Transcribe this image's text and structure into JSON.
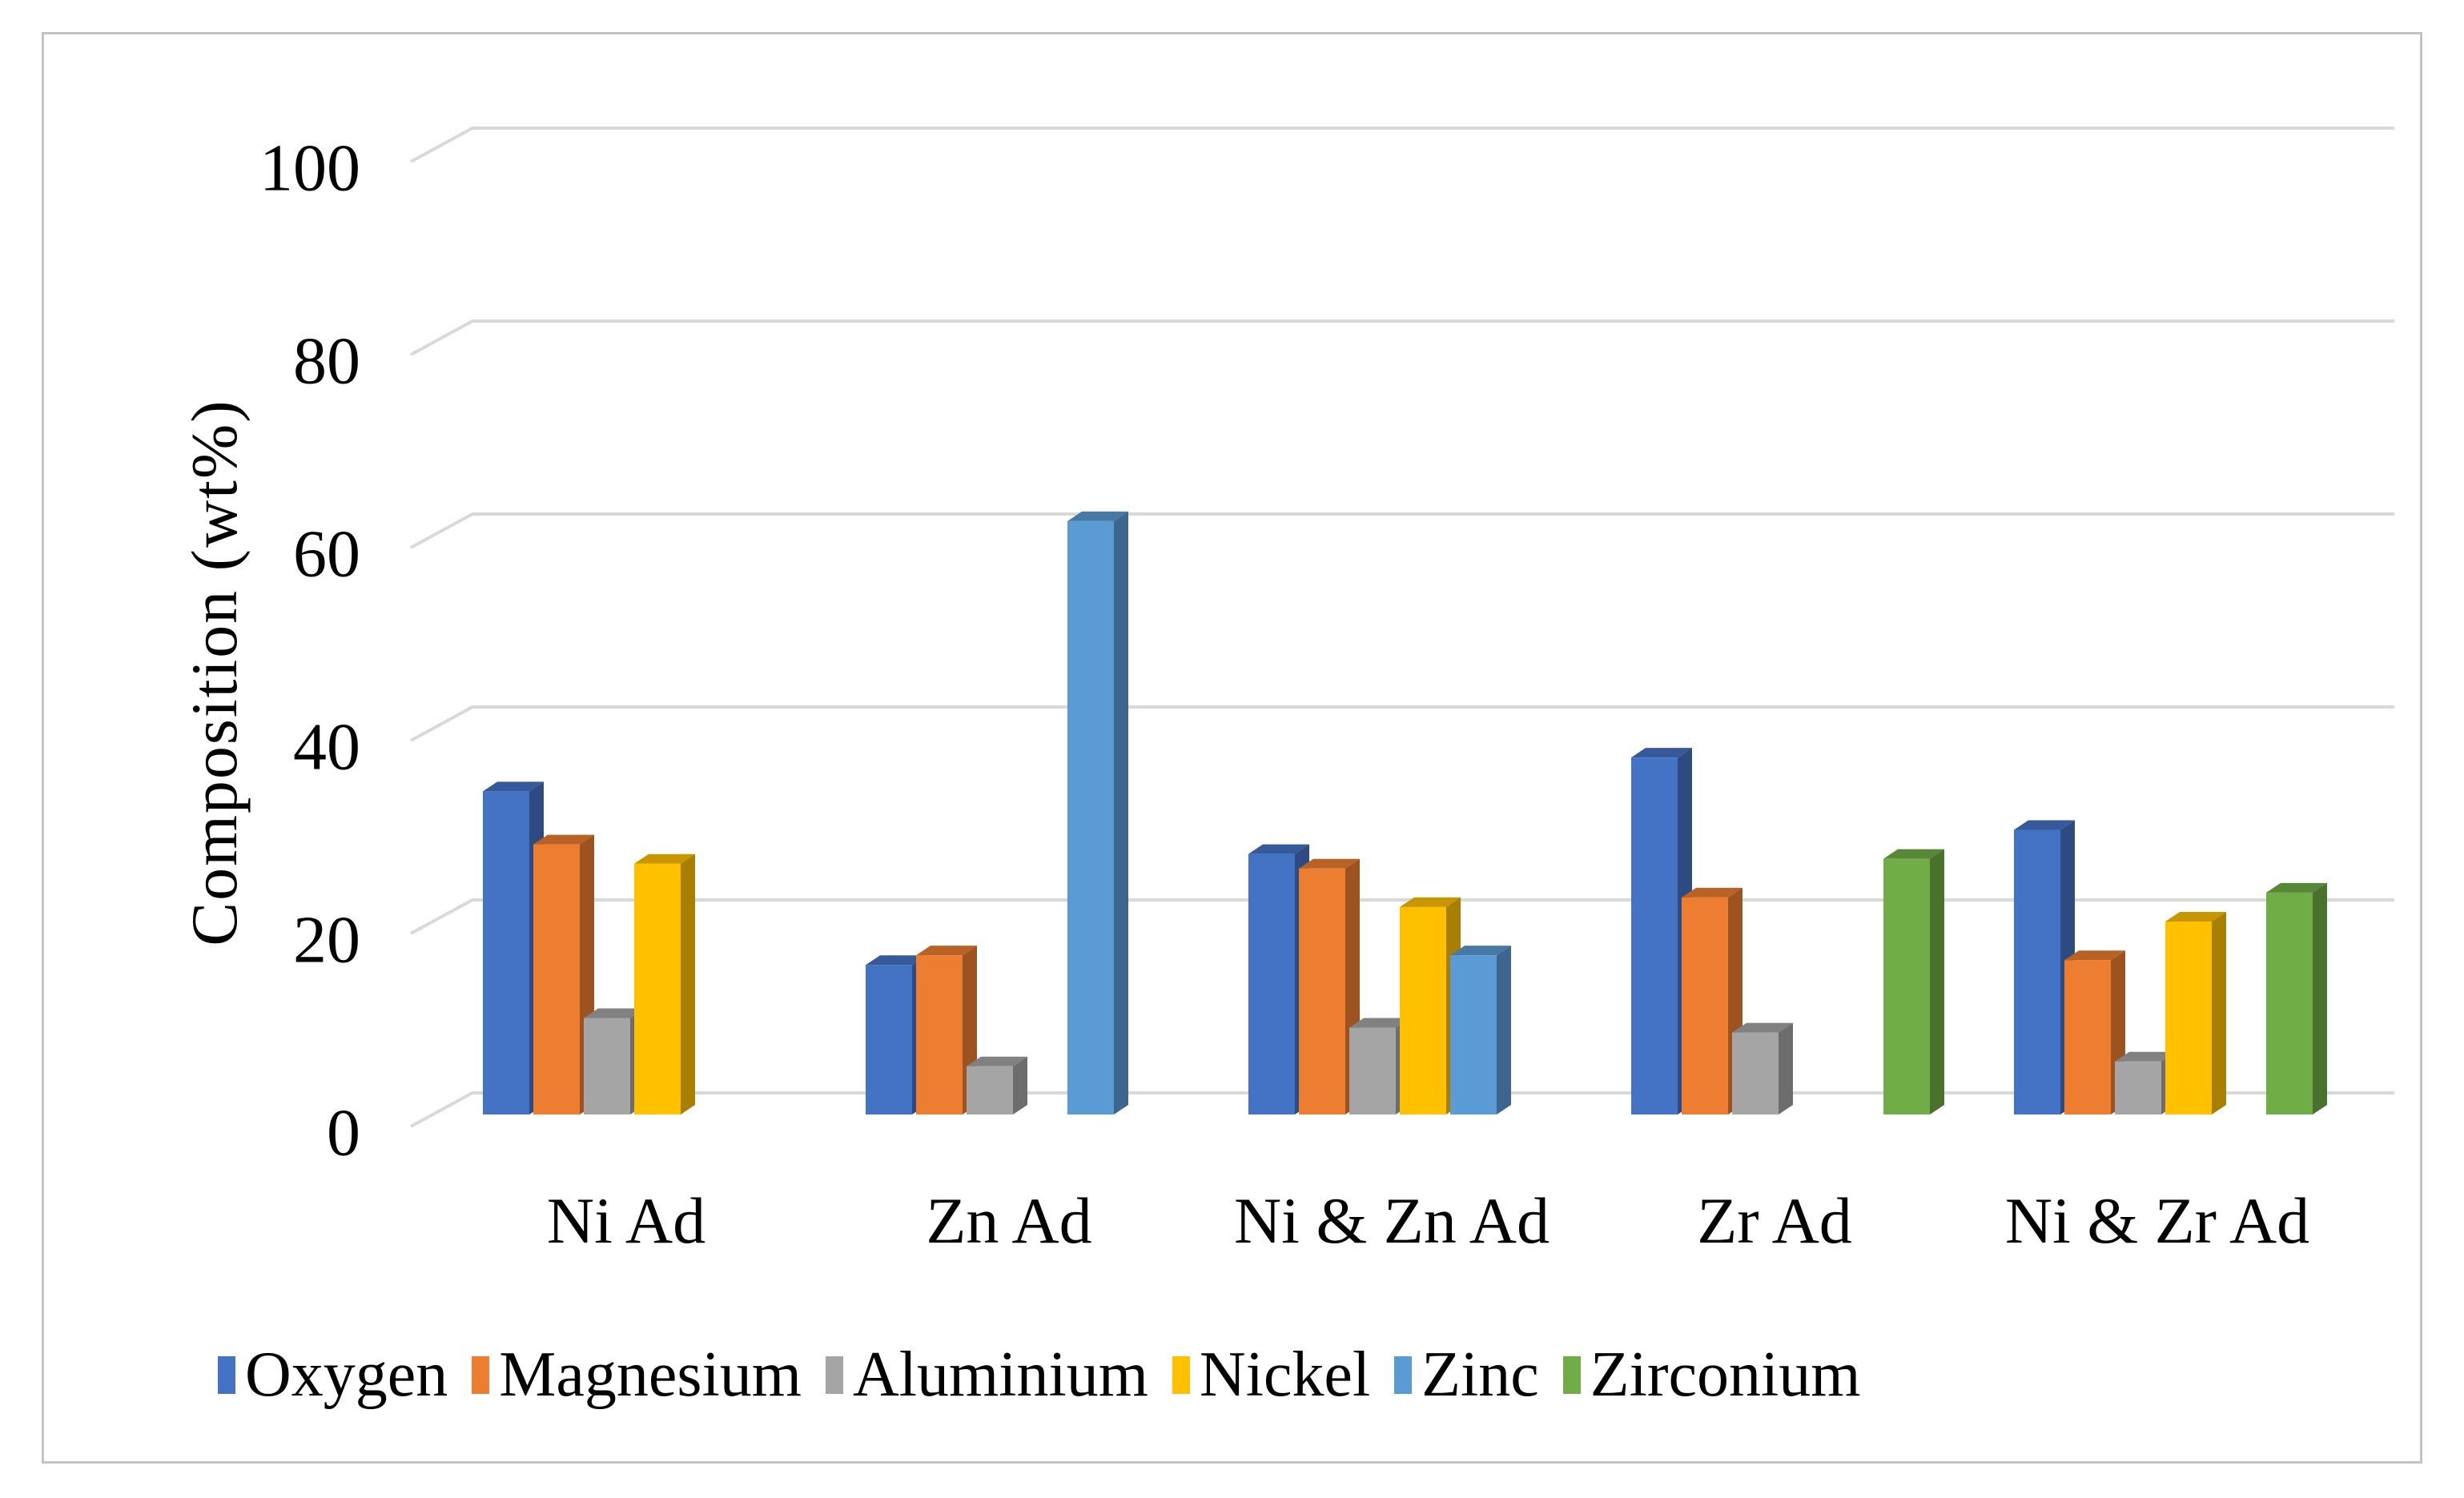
{
  "figure": {
    "background": "#ffffff",
    "border_color": "#c3c3c3",
    "gridline_color": "#d9d9d9",
    "text_color": "#000000"
  },
  "chart_data": {
    "type": "bar",
    "style": "3d-clustered-column",
    "title": "",
    "xlabel": "",
    "ylabel": "Composition (wt%)",
    "ylim": [
      0,
      100
    ],
    "yticks": [
      0,
      20,
      40,
      60,
      80,
      100
    ],
    "grid": true,
    "legend_position": "bottom",
    "categories": [
      "Ni Ad",
      "Zn Ad",
      "Ni & Zn Ad",
      "Zr Ad",
      "Ni & Zr Ad"
    ],
    "series": [
      {
        "name": "Oxygen",
        "color": "#4472C4",
        "values": [
          33.5,
          15.5,
          27.0,
          37.0,
          29.5
        ]
      },
      {
        "name": "Magnesium",
        "color": "#ED7D31",
        "values": [
          28.0,
          16.5,
          25.5,
          22.5,
          16.0
        ]
      },
      {
        "name": "Aluminium",
        "color": "#A5A5A5",
        "values": [
          10.0,
          5.0,
          9.0,
          8.5,
          5.5
        ]
      },
      {
        "name": "Nickel",
        "color": "#FFC000",
        "values": [
          26.0,
          0,
          21.5,
          0,
          20.0
        ]
      },
      {
        "name": "Zinc",
        "color": "#5B9BD5",
        "values": [
          0,
          61.5,
          16.5,
          0,
          0
        ]
      },
      {
        "name": "Zirconium",
        "color": "#70AD47",
        "values": [
          0,
          0,
          0,
          26.5,
          23.0
        ]
      }
    ]
  }
}
